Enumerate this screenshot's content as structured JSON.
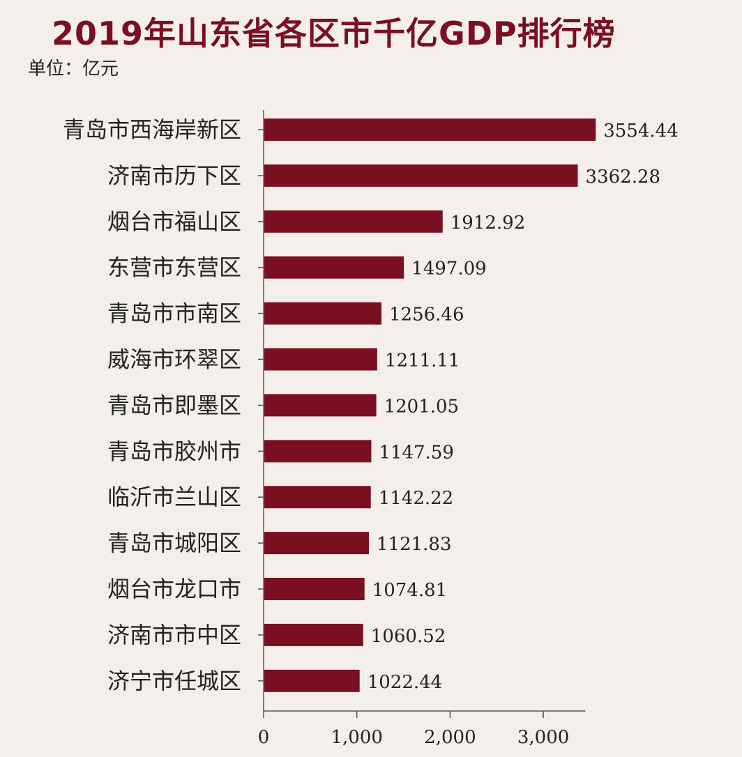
{
  "title": "2019年山东省各区市千亿GDP排行榜",
  "unit_label": "单位：亿元",
  "colors": {
    "bar": "#7a0f22",
    "axis": "#555555",
    "title": "#7a0f22"
  },
  "chart_data": {
    "type": "bar",
    "orientation": "horizontal",
    "title": "2019年山东省各区市千亿GDP排行榜",
    "xlabel": "",
    "ylabel": "",
    "unit": "亿元",
    "xlim": [
      0,
      3600
    ],
    "xticks": [
      0,
      1000,
      2000,
      3000
    ],
    "xtick_labels": [
      "0",
      "1,000",
      "2,000",
      "3,000"
    ],
    "categories": [
      "青岛市西海岸新区",
      "济南市历下区",
      "烟台市福山区",
      "东营市东营区",
      "青岛市市南区",
      "威海市环翠区",
      "青岛市即墨区",
      "青岛市胶州市",
      "临沂市兰山区",
      "青岛市城阳区",
      "烟台市龙口市",
      "济南市市中区",
      "济宁市任城区"
    ],
    "values": [
      3554.44,
      3362.28,
      1912.92,
      1497.09,
      1256.46,
      1211.11,
      1201.05,
      1147.59,
      1142.22,
      1121.83,
      1074.81,
      1060.52,
      1022.44
    ],
    "value_labels": [
      "3554.44",
      "3362.28",
      "1912.92",
      "1497.09",
      "1256.46",
      "1211.11",
      "1201.05",
      "1147.59",
      "1142.22",
      "1121.83",
      "1074.81",
      "1060.52",
      "1022.44"
    ],
    "grid": false,
    "legend": "none"
  }
}
